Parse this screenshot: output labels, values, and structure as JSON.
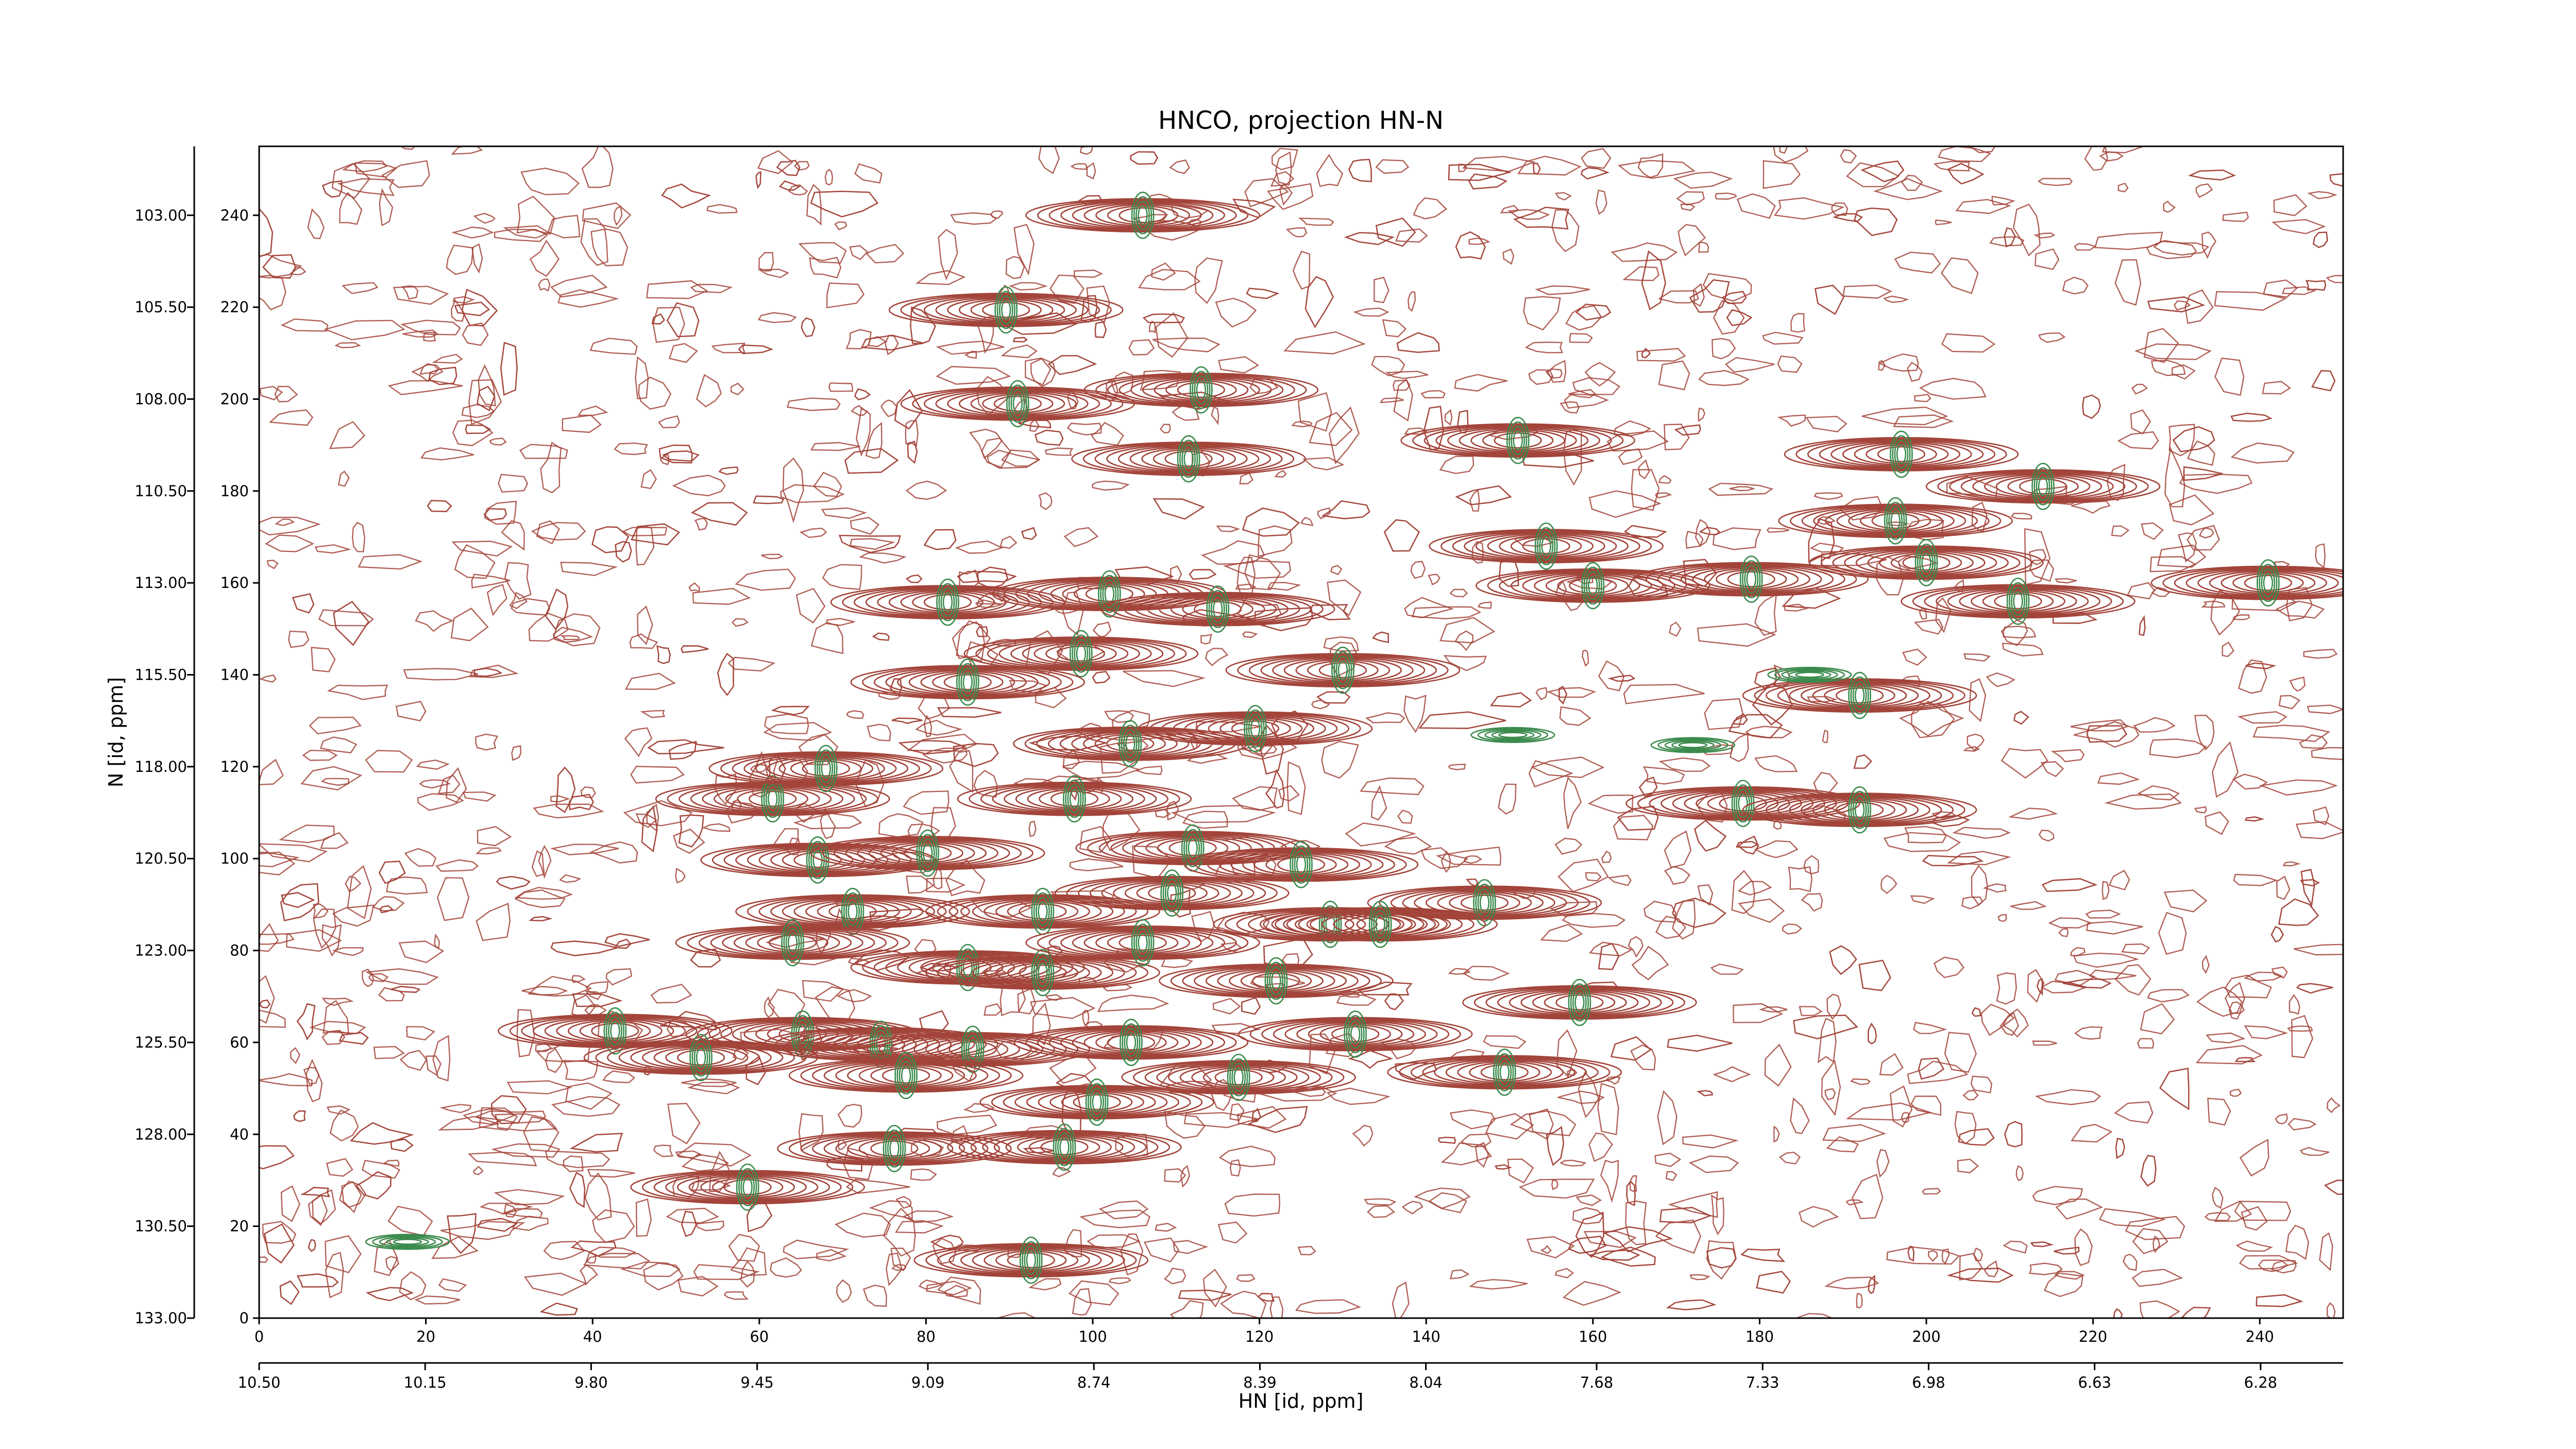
{
  "chart_data": {
    "type": "contour",
    "title": "HNCO, projection HN-N",
    "xlabel": "HN [id, ppm]",
    "ylabel": "N [id, ppm]",
    "xlim": [
      0,
      250
    ],
    "ylim": [
      0,
      255
    ],
    "xticks": [
      0,
      20,
      40,
      60,
      80,
      100,
      120,
      140,
      160,
      180,
      200,
      220,
      240
    ],
    "yticks": [
      0,
      20,
      40,
      60,
      80,
      100,
      120,
      140,
      160,
      180,
      200,
      220,
      240
    ],
    "x2lim": [
      10.5,
      6.106
    ],
    "x2ticks": [
      {
        "value": 10.5,
        "label": "10.50"
      },
      {
        "value": 10.15,
        "label": "10.15"
      },
      {
        "value": 9.8,
        "label": "9.80"
      },
      {
        "value": 9.45,
        "label": "9.45"
      },
      {
        "value": 9.09,
        "label": "9.09"
      },
      {
        "value": 8.74,
        "label": "8.74"
      },
      {
        "value": 8.39,
        "label": "8.39"
      },
      {
        "value": 8.04,
        "label": "8.04"
      },
      {
        "value": 7.68,
        "label": "7.68"
      },
      {
        "value": 7.33,
        "label": "7.33"
      },
      {
        "value": 6.98,
        "label": "6.98"
      },
      {
        "value": 6.63,
        "label": "6.63"
      },
      {
        "value": 6.28,
        "label": "6.28"
      }
    ],
    "y2lim": [
      133,
      101.125
    ],
    "y2ticks": [
      {
        "value": 103,
        "label": "103.00"
      },
      {
        "value": 105.5,
        "label": "105.50"
      },
      {
        "value": 108,
        "label": "108.00"
      },
      {
        "value": 110.5,
        "label": "110.50"
      },
      {
        "value": 113,
        "label": "113.00"
      },
      {
        "value": 115.5,
        "label": "115.50"
      },
      {
        "value": 118,
        "label": "118.00"
      },
      {
        "value": 120.5,
        "label": "120.50"
      },
      {
        "value": 123,
        "label": "123.00"
      },
      {
        "value": 125.5,
        "label": "125.50"
      },
      {
        "value": 128,
        "label": "128.00"
      },
      {
        "value": 130.5,
        "label": "130.50"
      },
      {
        "value": 133,
        "label": "133.00"
      }
    ],
    "series": [
      {
        "color": "#a3443a",
        "x": [
          106,
          89.6,
          113,
          91,
          111.5,
          151,
          197,
          214,
          154.4,
          160,
          196.3,
          200,
          179,
          211,
          241,
          82.6,
          102,
          115,
          98.6,
          85,
          130,
          192,
          104.5,
          119.5,
          61.6,
          68,
          97.8,
          178,
          192,
          67,
          80.2,
          112,
          125,
          71.2,
          94,
          109.5,
          147,
          128.5,
          134.5,
          64,
          85,
          94,
          106,
          122,
          158.4,
          42.7,
          53,
          65.2,
          74.6,
          85.6,
          77.6,
          104.6,
          131.5,
          117.5,
          149.4,
          100.5,
          96.6,
          76.2,
          58.6,
          92.6
        ],
        "y": [
          240,
          219.4,
          202,
          199,
          187,
          191,
          188,
          181,
          168,
          159.4,
          173.5,
          164.4,
          160.8,
          156,
          160,
          155.8,
          157.6,
          154.3,
          144.6,
          138.4,
          141,
          135.5,
          125,
          128.3,
          113,
          119.6,
          113,
          112,
          110.6,
          99.7,
          101.2,
          102.3,
          98.7,
          88.5,
          88.5,
          92.5,
          90.4,
          85.7,
          85.7,
          81.7,
          76.3,
          75.2,
          81.7,
          73.4,
          68.7,
          62.5,
          56.7,
          61.8,
          59.6,
          58.5,
          52.8,
          60,
          61.8,
          52.4,
          53.5,
          47,
          37.2,
          36.9,
          28.5,
          12.6
        ]
      },
      {
        "color": "#3a8a4c",
        "x": [
          186,
          150.4,
          172,
          17.8
        ],
        "y": [
          140,
          126.9,
          124.7,
          16.6
        ]
      }
    ]
  }
}
